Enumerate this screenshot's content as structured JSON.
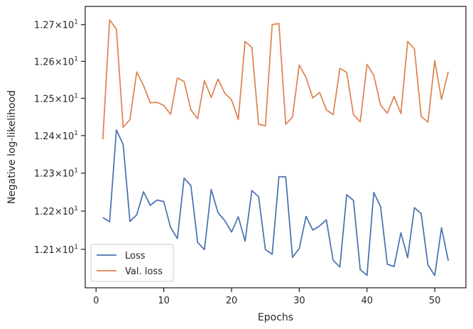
{
  "chart_data": {
    "type": "line",
    "title": "",
    "xlabel": "Epochs",
    "ylabel": "Negative log-likelihood",
    "xlim": [
      -1.6,
      54.6
    ],
    "ylim": [
      12.0,
      12.75
    ],
    "yscale": "log",
    "xticks": [
      0,
      10,
      20,
      30,
      40,
      50
    ],
    "xtick_labels": [
      "0",
      "10",
      "20",
      "30",
      "40",
      "50"
    ],
    "yticks": [
      12.1,
      12.2,
      12.3,
      12.4,
      12.5,
      12.6,
      12.7
    ],
    "ytick_labels": [
      {
        "mant": "1.21",
        "base": "10",
        "exp": "1"
      },
      {
        "mant": "1.22",
        "base": "10",
        "exp": "1"
      },
      {
        "mant": "1.23",
        "base": "10",
        "exp": "1"
      },
      {
        "mant": "1.24",
        "base": "10",
        "exp": "1"
      },
      {
        "mant": "1.25",
        "base": "10",
        "exp": "1"
      },
      {
        "mant": "1.26",
        "base": "10",
        "exp": "1"
      },
      {
        "mant": "1.27",
        "base": "10",
        "exp": "1"
      }
    ],
    "grid": false,
    "legend_position": "lower-left",
    "x": [
      1,
      2,
      3,
      4,
      5,
      6,
      7,
      8,
      9,
      10,
      11,
      12,
      13,
      14,
      15,
      16,
      17,
      18,
      19,
      20,
      21,
      22,
      23,
      24,
      25,
      26,
      27,
      28,
      29,
      30,
      31,
      32,
      33,
      34,
      35,
      36,
      37,
      38,
      39,
      40,
      41,
      42,
      43,
      44,
      45,
      46,
      47,
      48,
      49,
      50,
      51,
      52
    ],
    "series": [
      {
        "name": "Loss",
        "color": "#4c72b0",
        "values": [
          12.183,
          12.172,
          12.415,
          12.376,
          12.173,
          12.19,
          12.251,
          12.215,
          12.229,
          12.225,
          12.157,
          12.128,
          12.287,
          12.267,
          12.118,
          12.099,
          12.257,
          12.196,
          12.175,
          12.145,
          12.185,
          12.121,
          12.254,
          12.238,
          12.099,
          12.087,
          12.291,
          12.29,
          12.079,
          12.102,
          12.186,
          12.15,
          12.161,
          12.177,
          12.071,
          12.054,
          12.243,
          12.228,
          12.047,
          12.032,
          12.249,
          12.212,
          12.061,
          12.055,
          12.143,
          12.078,
          12.209,
          12.193,
          12.059,
          12.032,
          12.156,
          12.07
        ]
      },
      {
        "name": "Val. loss",
        "color": "#dd8452",
        "values": [
          12.39,
          12.713,
          12.688,
          12.422,
          12.443,
          12.571,
          12.535,
          12.488,
          12.489,
          12.481,
          12.457,
          12.555,
          12.545,
          12.469,
          12.445,
          12.548,
          12.502,
          12.552,
          12.514,
          12.496,
          12.443,
          12.654,
          12.638,
          12.43,
          12.426,
          12.7,
          12.703,
          12.43,
          12.45,
          12.59,
          12.556,
          12.501,
          12.516,
          12.469,
          12.456,
          12.581,
          12.57,
          12.456,
          12.437,
          12.592,
          12.562,
          12.482,
          12.46,
          12.505,
          12.459,
          12.654,
          12.634,
          12.451,
          12.436,
          12.602,
          12.497,
          12.572
        ]
      }
    ]
  }
}
